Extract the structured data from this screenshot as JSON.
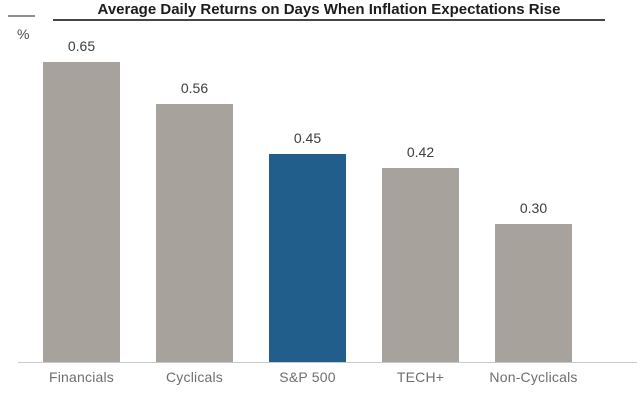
{
  "chart_data": {
    "type": "bar",
    "title": "Average Daily Returns on Days When Inflation Expectations Rise",
    "ylabel": "%",
    "categories": [
      "Financials",
      "Cyclicals",
      "S&P 500",
      "TECH+",
      "Non-Cyclicals"
    ],
    "values": [
      0.65,
      0.56,
      0.45,
      0.42,
      0.3
    ],
    "value_labels": [
      "0.65",
      "0.56",
      "0.45",
      "0.42",
      "0.30"
    ],
    "highlight_index": 2,
    "highlight_color": "#225e8c",
    "default_color": "#a8a29c",
    "ylim": [
      0,
      0.7
    ],
    "grid": false,
    "legend": false,
    "axis_line_color": "#c9c9c9",
    "title_color": "#1c1c1c",
    "value_label_color": "#3d3d3d",
    "category_label_color": "#6e6e6e"
  }
}
